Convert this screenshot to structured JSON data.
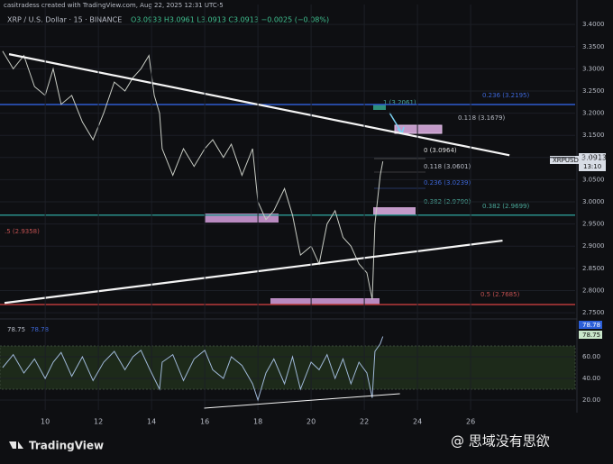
{
  "header": {
    "credit": "casitradess created with TradingView.com, Aug 22, 2025 12:31 UTC-5",
    "symbol": "XRP / U.S. Dollar · 15 · BINANCE",
    "ohlc": "O3.0933 H3.0961 L3.0913 C3.0913 −0.0025 (−0.08%)"
  },
  "fib_labels": [
    "0.236 (3.2195)",
    "1 (3.2061)",
    "0.118 (3.1679)",
    "0 (3.0964)",
    "0.118 (3.0601)",
    "0.236 (3.0239)",
    "0.382 (2.9790)",
    "0.382 (2.9699)",
    ".5 (2.9358)",
    "0.5 (2.7685)"
  ],
  "price_tag": {
    "symbol": "XRPUSD",
    "price": "3.0913",
    "time": "13:10"
  },
  "rsi_tags": [
    "78.78",
    "78.75"
  ],
  "rsi_legend": [
    "78.75",
    "78.78"
  ],
  "footer": {
    "brand": "TradingView",
    "watermark": "@ 思域没有思欲"
  },
  "chart_data": [
    {
      "type": "line",
      "color": "#c8ccc4",
      "x": [
        8.4,
        8.8,
        9.2,
        9.6,
        10.0,
        10.3,
        10.6,
        11.0,
        11.4,
        11.8,
        12.2,
        12.6,
        13.0,
        13.3,
        13.6,
        13.9,
        14.1,
        14.3,
        14.4,
        14.8,
        15.2,
        15.6,
        16.0,
        16.3,
        16.7,
        17.0,
        17.4,
        17.8,
        18.0,
        18.3,
        18.6,
        19.0,
        19.3,
        19.6,
        20.0,
        20.3,
        20.6,
        20.9,
        21.2,
        21.5,
        21.8,
        22.1,
        22.3,
        22.4,
        22.6,
        22.7
      ],
      "values": [
        3.34,
        3.3,
        3.33,
        3.26,
        3.24,
        3.3,
        3.22,
        3.24,
        3.18,
        3.14,
        3.2,
        3.27,
        3.25,
        3.28,
        3.3,
        3.33,
        3.24,
        3.2,
        3.12,
        3.06,
        3.12,
        3.08,
        3.12,
        3.14,
        3.1,
        3.13,
        3.06,
        3.12,
        3.0,
        2.96,
        2.98,
        3.03,
        2.97,
        2.88,
        2.9,
        2.86,
        2.95,
        2.98,
        2.92,
        2.9,
        2.86,
        2.84,
        2.78,
        2.95,
        3.06,
        3.0913
      ],
      "xlim": [
        8.3,
        29.93
      ],
      "ylim": [
        2.74,
        3.445
      ],
      "yticks": [
        {
          "value": 2.75,
          "label": "2.7500"
        },
        {
          "value": 2.8,
          "label": "2.8000"
        },
        {
          "value": 2.85,
          "label": "2.8500"
        },
        {
          "value": 2.9,
          "label": "2.9000"
        },
        {
          "value": 2.95,
          "label": "2.9500"
        },
        {
          "value": 3.0,
          "label": "3.0000"
        },
        {
          "value": 3.05,
          "label": "3.0500"
        },
        {
          "value": 3.1,
          "label": "3.1000"
        },
        {
          "value": 3.15,
          "label": "3.1500"
        },
        {
          "value": 3.2,
          "label": "3.2000"
        },
        {
          "value": 3.25,
          "label": "3.2500"
        },
        {
          "value": 3.3,
          "label": "3.3000"
        },
        {
          "value": 3.35,
          "label": "3.3500"
        },
        {
          "value": 3.4,
          "label": "3.4000"
        }
      ],
      "levels": [
        {
          "value": 3.2195,
          "color": "#2f5bd0"
        },
        {
          "value": 2.97,
          "color": "#2a8f8a"
        },
        {
          "value": 2.7685,
          "color": "#b83a3a"
        }
      ],
      "trendlines": [
        {
          "x": [
            8.64,
            27.46
          ],
          "y": [
            3.333,
            3.105
          ]
        },
        {
          "x": [
            8.47,
            27.2
          ],
          "y": [
            2.772,
            2.9125
          ]
        }
      ]
    },
    {
      "type": "line",
      "color": "#9fb8d8",
      "x": [
        8.4,
        8.8,
        9.2,
        9.6,
        10.0,
        10.3,
        10.6,
        11.0,
        11.4,
        11.8,
        12.2,
        12.6,
        13.0,
        13.3,
        13.6,
        13.9,
        14.1,
        14.3,
        14.4,
        14.8,
        15.2,
        15.6,
        16.0,
        16.3,
        16.7,
        17.0,
        17.4,
        17.8,
        18.0,
        18.3,
        18.6,
        19.0,
        19.3,
        19.6,
        20.0,
        20.3,
        20.6,
        20.9,
        21.2,
        21.5,
        21.8,
        22.1,
        22.3,
        22.4,
        22.6,
        22.7
      ],
      "values": [
        50,
        62,
        45,
        58,
        40,
        55,
        64,
        42,
        60,
        38,
        55,
        65,
        48,
        60,
        66,
        50,
        40,
        30,
        55,
        62,
        38,
        58,
        66,
        48,
        40,
        60,
        52,
        35,
        20,
        45,
        58,
        35,
        60,
        30,
        55,
        48,
        62,
        40,
        58,
        35,
        55,
        45,
        22,
        65,
        72,
        78.75
      ],
      "xlim": [
        8.3,
        29.93
      ],
      "ylim": [
        10.8,
        91.7
      ],
      "xticks": [
        10,
        12,
        14,
        16,
        18,
        20,
        22,
        24,
        26
      ],
      "yticks": [
        {
          "value": 20,
          "label": "20.00"
        },
        {
          "value": 40,
          "label": "40.00"
        },
        {
          "value": 60,
          "label": "60.00"
        }
      ],
      "band": [
        30,
        70
      ],
      "trendlines": [
        {
          "x": [
            15.98,
            23.34
          ],
          "y": [
            12.5,
            25.8
          ]
        }
      ]
    }
  ]
}
